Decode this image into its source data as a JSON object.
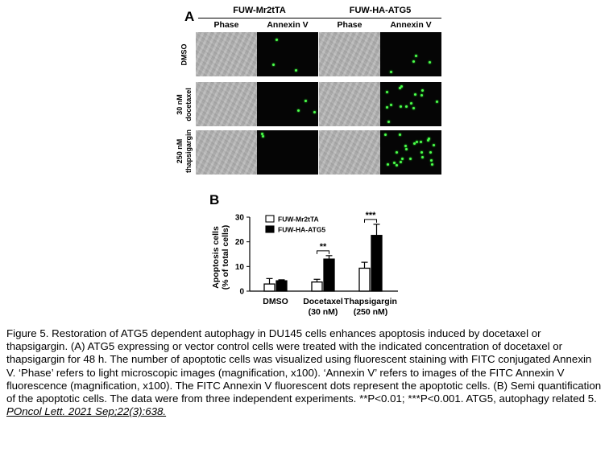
{
  "figure_a": {
    "label": "A",
    "groups": [
      {
        "title": "FUW-Mr2tTA",
        "columns": [
          "Phase",
          "Annexin V"
        ]
      },
      {
        "title": "FUW-HA-ATG5",
        "columns": [
          "Phase",
          "Annexin V"
        ]
      }
    ],
    "rows": [
      {
        "label_lines": [
          "DMSO"
        ]
      },
      {
        "label_lines": [
          "30 nM",
          "docetaxel"
        ]
      },
      {
        "label_lines": [
          "250 nM",
          "thapsigargin"
        ]
      }
    ]
  },
  "chart_data": {
    "panel_label": "B",
    "type": "bar",
    "ylabel_lines": [
      "Apoptosis cells",
      "(% of total cells)"
    ],
    "ylim": [
      0,
      30
    ],
    "yticks": [
      0,
      10,
      20,
      30
    ],
    "categories": [
      {
        "lines": [
          "DMSO"
        ]
      },
      {
        "lines": [
          "Docetaxel",
          "(30 nM)"
        ]
      },
      {
        "lines": [
          "Thapsigargin",
          "(250 nM)"
        ]
      }
    ],
    "series": [
      {
        "name": "FUW-Mr2tTA",
        "fill": "#ffffff",
        "values": [
          2.9,
          3.7,
          9.3
        ],
        "errors": [
          2.2,
          1.1,
          2.4
        ]
      },
      {
        "name": "FUW-HA-ATG5",
        "fill": "#000000",
        "values": [
          4.2,
          13.0,
          22.6
        ],
        "errors": [
          0.4,
          1.4,
          4.5
        ]
      }
    ],
    "significance": [
      {
        "category": 1,
        "label": "**"
      },
      {
        "category": 2,
        "label": "***"
      }
    ],
    "legend_position": "top-left"
  },
  "caption": {
    "text": "Figure 5. Restoration of ATG5 dependent autophagy in DU145 cells enhances apoptosis induced by docetaxel or thapsigargin. (A) ATG5 expressing or vector control cells were treated with the indicated concentration of docetaxel or thapsigargin for 48 h. The number of apoptotic cells was visualized using fluorescent staining with FITC conjugated Annexin V. ‘Phase’ refers to light microscopic images (magnification, x100). ‘Annexin V’ refers to images of the FITC Annexin V fluorescence (magnification, x100). The FITC Annexin V fluorescent dots represent the apoptotic cells. (B) Semi quantification of the apoptotic cells. The data were from three independent experiments. **P<0.01; ***P<0.001. ATG5, autophagy related 5.",
    "citation": "POncol Lett. 2021 Sep;22(3):638."
  },
  "colors": {
    "fluorescence": "#4cff4c",
    "background": "#ffffff"
  }
}
